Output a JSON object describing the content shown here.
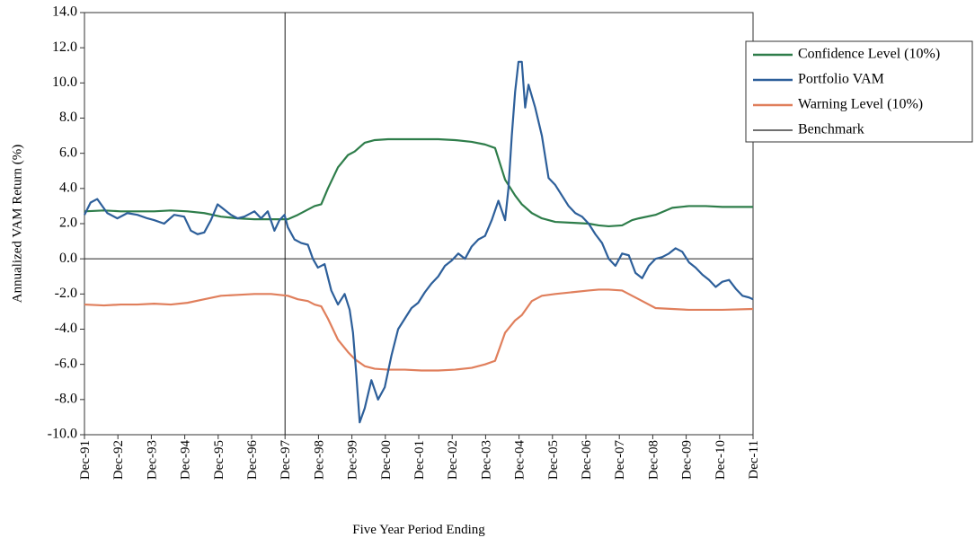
{
  "chart_data": {
    "type": "line",
    "title": "",
    "xlabel": "Five Year Period Ending",
    "ylabel": "Annualized VAM Return (%)",
    "ylim": [
      -10.0,
      14.0
    ],
    "yticks": [
      "14.0",
      "12.0",
      "10.0",
      "8.0",
      "6.0",
      "4.0",
      "2.0",
      "0.0",
      "-2.0",
      "-4.0",
      "-6.0",
      "-8.0",
      "-10.0"
    ],
    "xlim": [
      1991.917,
      2011.917
    ],
    "xticks": [
      "Dec-91",
      "Dec-92",
      "Dec-93",
      "Dec-94",
      "Dec-95",
      "Dec-96",
      "Dec-97",
      "Dec-98",
      "Dec-99",
      "Dec-00",
      "Dec-01",
      "Dec-02",
      "Dec-03",
      "Dec-04",
      "Dec-05",
      "Dec-06",
      "Dec-07",
      "Dec-08",
      "Dec-09",
      "Dec-10",
      "Dec-11"
    ],
    "grid": false,
    "legend_position": "right",
    "zero_line": true,
    "series": [
      {
        "name": "Confidence Level (10%)",
        "color": "#2e7d4a",
        "x": [
          1991.917,
          1992.5,
          1993.0,
          1993.5,
          1994.0,
          1994.5,
          1995.0,
          1995.5,
          1996.0,
          1996.5,
          1997.0,
          1997.5,
          1998.0,
          1998.3,
          1998.6,
          1998.8,
          1999.0,
          1999.2,
          1999.5,
          1999.8,
          2000.0,
          2000.3,
          2000.6,
          2001.0,
          2001.5,
          2002.0,
          2002.5,
          2003.0,
          2003.5,
          2003.9,
          2004.2,
          2004.5,
          2004.8,
          2005.0,
          2005.3,
          2005.6,
          2006.0,
          2006.5,
          2007.0,
          2007.3,
          2007.6,
          2008.0,
          2008.3,
          2008.5,
          2009.0,
          2009.5,
          2010.0,
          2010.5,
          2011.0,
          2011.917
        ],
        "y": [
          2.7,
          2.75,
          2.7,
          2.7,
          2.7,
          2.75,
          2.7,
          2.6,
          2.4,
          2.3,
          2.25,
          2.25,
          2.25,
          2.5,
          2.8,
          3.0,
          3.1,
          4.0,
          5.2,
          5.9,
          6.1,
          6.6,
          6.75,
          6.8,
          6.8,
          6.8,
          6.8,
          6.75,
          6.65,
          6.5,
          6.3,
          4.5,
          3.6,
          3.1,
          2.6,
          2.3,
          2.1,
          2.05,
          2.0,
          1.9,
          1.85,
          1.9,
          2.2,
          2.3,
          2.5,
          2.9,
          3.0,
          3.0,
          2.95,
          2.95
        ]
      },
      {
        "name": "Portfolio VAM",
        "color": "#2d5f9a",
        "x": [
          1991.917,
          1992.1,
          1992.3,
          1992.6,
          1992.9,
          1993.2,
          1993.5,
          1993.8,
          1994.0,
          1994.3,
          1994.6,
          1994.9,
          1995.1,
          1995.3,
          1995.5,
          1995.7,
          1995.9,
          1996.1,
          1996.3,
          1996.5,
          1996.7,
          1997.0,
          1997.2,
          1997.4,
          1997.6,
          1997.75,
          1997.9,
          1998.0,
          1998.2,
          1998.4,
          1998.6,
          1998.75,
          1998.9,
          1999.1,
          1999.3,
          1999.5,
          1999.7,
          1999.85,
          1999.95,
          2000.05,
          2000.15,
          2000.3,
          2000.5,
          2000.7,
          2000.9,
          2001.1,
          2001.3,
          2001.5,
          2001.7,
          2001.9,
          2002.1,
          2002.3,
          2002.5,
          2002.7,
          2002.9,
          2003.1,
          2003.3,
          2003.5,
          2003.7,
          2003.9,
          2004.1,
          2004.3,
          2004.5,
          2004.6,
          2004.7,
          2004.8,
          2004.9,
          2005.0,
          2005.1,
          2005.2,
          2005.4,
          2005.6,
          2005.8,
          2006.0,
          2006.2,
          2006.4,
          2006.6,
          2006.8,
          2007.0,
          2007.2,
          2007.4,
          2007.6,
          2007.8,
          2008.0,
          2008.2,
          2008.4,
          2008.6,
          2008.8,
          2009.0,
          2009.2,
          2009.4,
          2009.6,
          2009.8,
          2010.0,
          2010.2,
          2010.4,
          2010.6,
          2010.8,
          2011.0,
          2011.2,
          2011.4,
          2011.6,
          2011.8,
          2011.917
        ],
        "y": [
          2.5,
          3.2,
          3.4,
          2.6,
          2.3,
          2.6,
          2.5,
          2.3,
          2.2,
          2.0,
          2.5,
          2.4,
          1.6,
          1.4,
          1.5,
          2.2,
          3.1,
          2.8,
          2.5,
          2.3,
          2.4,
          2.7,
          2.3,
          2.7,
          1.6,
          2.2,
          2.5,
          1.8,
          1.1,
          0.9,
          0.8,
          0.0,
          -0.5,
          -0.3,
          -1.8,
          -2.6,
          -2.0,
          -2.9,
          -4.2,
          -6.6,
          -9.3,
          -8.5,
          -6.9,
          -8.0,
          -7.3,
          -5.5,
          -4.0,
          -3.4,
          -2.8,
          -2.5,
          -1.9,
          -1.4,
          -1.0,
          -0.4,
          -0.1,
          0.3,
          0.0,
          0.7,
          1.1,
          1.3,
          2.2,
          3.3,
          2.2,
          4.0,
          7.0,
          9.5,
          11.2,
          11.2,
          8.6,
          9.9,
          8.6,
          7.0,
          4.6,
          4.2,
          3.6,
          3.0,
          2.6,
          2.4,
          2.0,
          1.4,
          0.9,
          0.0,
          -0.4,
          0.3,
          0.2,
          -0.8,
          -1.1,
          -0.4,
          0.0,
          0.1,
          0.3,
          0.6,
          0.4,
          -0.2,
          -0.5,
          -0.9,
          -1.2,
          -1.6,
          -1.3,
          -1.2,
          -1.7,
          -2.1,
          -2.2,
          -2.3
        ]
      },
      {
        "name": "Warning Level (10%)",
        "color": "#e07f5c",
        "x": [
          1991.917,
          1992.5,
          1993.0,
          1993.5,
          1994.0,
          1994.5,
          1995.0,
          1995.5,
          1996.0,
          1996.5,
          1997.0,
          1997.5,
          1998.0,
          1998.3,
          1998.6,
          1998.8,
          1999.0,
          1999.2,
          1999.5,
          1999.8,
          2000.0,
          2000.3,
          2000.6,
          2001.0,
          2001.5,
          2002.0,
          2002.5,
          2003.0,
          2003.5,
          2003.9,
          2004.2,
          2004.5,
          2004.8,
          2005.0,
          2005.3,
          2005.6,
          2006.0,
          2006.5,
          2007.0,
          2007.3,
          2007.6,
          2008.0,
          2008.3,
          2008.5,
          2009.0,
          2009.5,
          2010.0,
          2010.5,
          2011.0,
          2011.917
        ],
        "y": [
          -2.6,
          -2.65,
          -2.6,
          -2.6,
          -2.55,
          -2.6,
          -2.5,
          -2.3,
          -2.1,
          -2.05,
          -2.0,
          -2.0,
          -2.1,
          -2.3,
          -2.4,
          -2.6,
          -2.7,
          -3.4,
          -4.6,
          -5.3,
          -5.7,
          -6.1,
          -6.25,
          -6.3,
          -6.3,
          -6.35,
          -6.35,
          -6.3,
          -6.2,
          -6.0,
          -5.8,
          -4.2,
          -3.5,
          -3.2,
          -2.4,
          -2.1,
          -2.0,
          -1.9,
          -1.8,
          -1.75,
          -1.75,
          -1.8,
          -2.1,
          -2.3,
          -2.8,
          -2.85,
          -2.9,
          -2.9,
          -2.9,
          -2.85
        ]
      },
      {
        "name": "Benchmark",
        "color": "#1a1a1a",
        "x": [
          1997.917,
          1997.917
        ],
        "y": [
          -10.0,
          14.0
        ]
      }
    ]
  }
}
